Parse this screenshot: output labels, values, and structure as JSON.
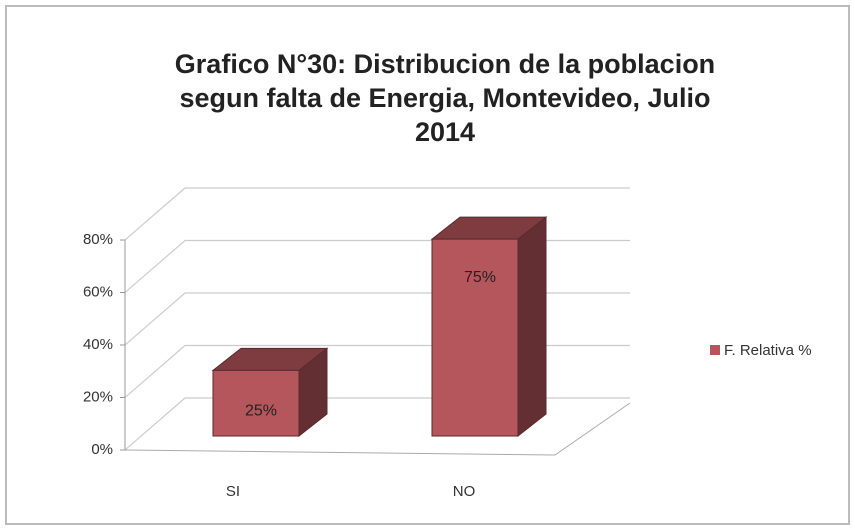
{
  "chart_data": {
    "type": "bar3d",
    "title": [
      "Grafico N°30: Distribucion de la poblacion",
      "segun falta de Energia, Montevideo, Julio",
      "2014"
    ],
    "categories": [
      "SI",
      "NO"
    ],
    "series": [
      {
        "name": "F. Relativa %",
        "color": "#b5565c",
        "values": [
          25,
          75
        ],
        "value_labels": [
          "25%",
          "75%"
        ]
      }
    ],
    "ylim": [
      0,
      80
    ],
    "yticks": [
      {
        "value": 0,
        "label": "0%"
      },
      {
        "value": 20,
        "label": "20%"
      },
      {
        "value": 40,
        "label": "40%"
      },
      {
        "value": 60,
        "label": "60%"
      },
      {
        "value": 80,
        "label": "80%"
      }
    ],
    "grid": true,
    "legend": "right"
  }
}
